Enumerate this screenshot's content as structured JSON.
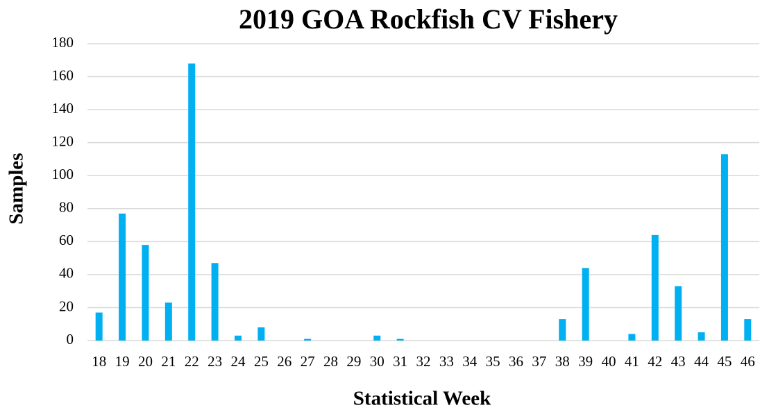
{
  "chart_data": {
    "type": "bar",
    "title": "2019 GOA Rockfish CV Fishery",
    "x_label": "Statistical Week",
    "y_label": "Samples",
    "categories": [
      "18",
      "19",
      "20",
      "21",
      "22",
      "23",
      "24",
      "25",
      "26",
      "27",
      "28",
      "29",
      "30",
      "31",
      "32",
      "33",
      "34",
      "35",
      "36",
      "37",
      "38",
      "39",
      "40",
      "41",
      "42",
      "43",
      "44",
      "45",
      "46"
    ],
    "values": [
      17,
      77,
      58,
      23,
      168,
      47,
      3,
      8,
      0,
      1,
      0,
      0,
      3,
      1,
      0,
      0,
      0,
      0,
      0,
      0,
      13,
      44,
      0,
      4,
      64,
      33,
      5,
      113,
      13
    ],
    "color": "#00b0f0",
    "ylim": [
      0,
      180
    ],
    "yticks": [
      0,
      20,
      40,
      60,
      80,
      100,
      120,
      140,
      160,
      180
    ],
    "grid": true
  }
}
